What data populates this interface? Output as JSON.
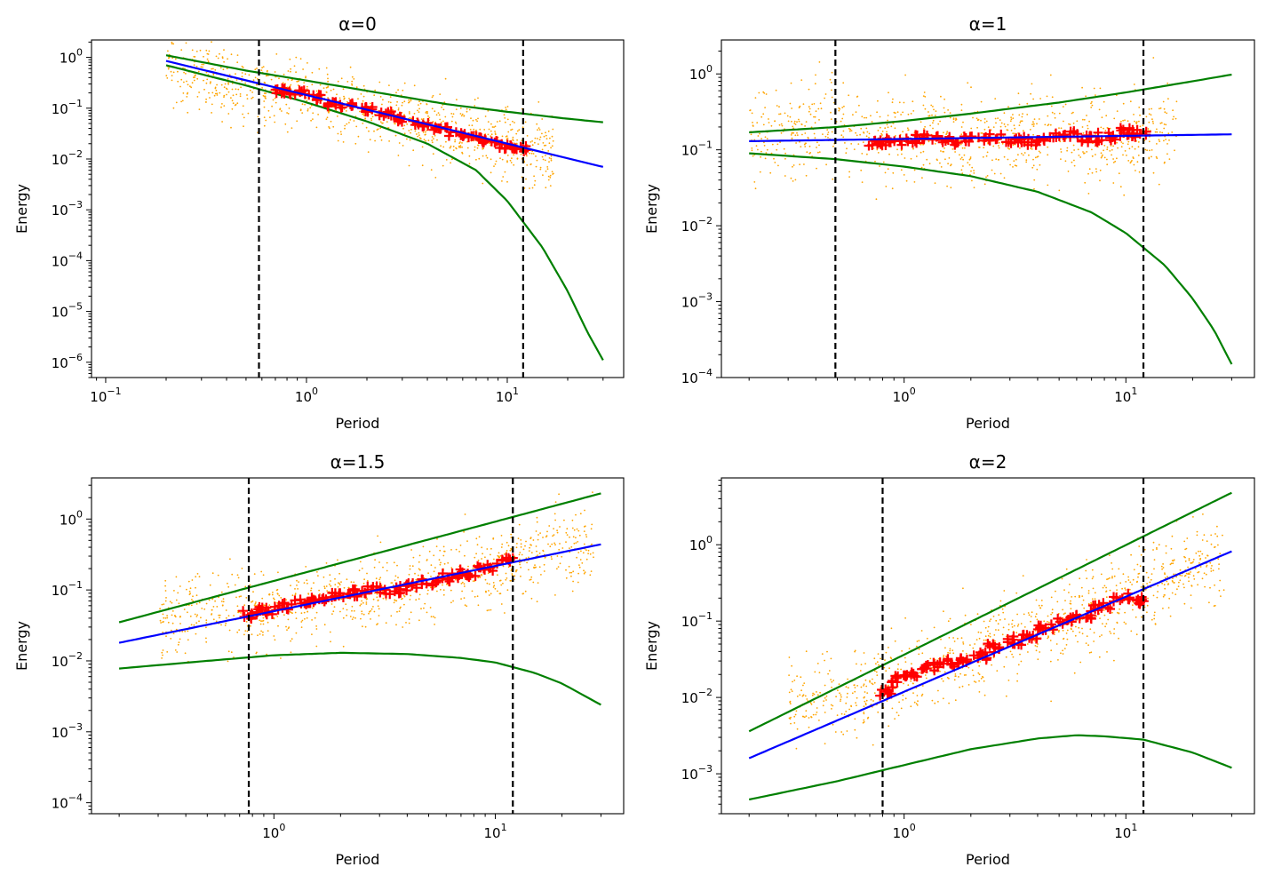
{
  "colors": {
    "scatter": "#FFA500",
    "binned": "#FF0000",
    "fit": "#0000FF",
    "envelope": "#008000",
    "cutoff": "#000000"
  },
  "chart_data": [
    {
      "type": "scatter",
      "title": "α=0",
      "xlabel": "Period",
      "ylabel": "Energy",
      "xscale": "log",
      "yscale": "log",
      "xlim": [
        0.085,
        38
      ],
      "ylim": [
        5e-07,
        2.2
      ],
      "xticks": [
        {
          "v": 0.1,
          "label": "10",
          "exp": "−1"
        },
        {
          "v": 1,
          "label": "10",
          "exp": "0"
        },
        {
          "v": 10,
          "label": "10",
          "exp": "1"
        }
      ],
      "yticks": [
        {
          "v": 1e-06,
          "label": "10",
          "exp": "−6"
        },
        {
          "v": 1e-05,
          "label": "10",
          "exp": "−5"
        },
        {
          "v": 0.0001,
          "label": "10",
          "exp": "−4"
        },
        {
          "v": 0.001,
          "label": "10",
          "exp": "−3"
        },
        {
          "v": 0.01,
          "label": "10",
          "exp": "−2"
        },
        {
          "v": 0.1,
          "label": "10",
          "exp": "−1"
        },
        {
          "v": 1,
          "label": "10",
          "exp": "0"
        }
      ],
      "vlines": [
        0.58,
        12.0
      ],
      "fit_line": {
        "x": [
          0.2,
          30
        ],
        "y": [
          0.85,
          0.007
        ]
      },
      "envelope_upper": {
        "x": [
          0.2,
          0.5,
          1,
          2,
          5,
          10,
          20,
          30
        ],
        "y": [
          1.1,
          0.55,
          0.35,
          0.22,
          0.12,
          0.085,
          0.062,
          0.053
        ]
      },
      "envelope_lower": {
        "x": [
          0.2,
          0.5,
          1,
          2,
          4,
          7,
          10,
          15,
          20,
          25,
          30
        ],
        "y": [
          0.7,
          0.28,
          0.13,
          0.055,
          0.02,
          0.006,
          0.0015,
          0.00018,
          2.5e-05,
          4e-06,
          1.1e-06
        ]
      },
      "binned": {
        "x": [
          0.75,
          0.9,
          1.1,
          1.35,
          1.6,
          2.0,
          2.5,
          3.1,
          3.8,
          4.6,
          5.6,
          6.8,
          8.2,
          10,
          11.5
        ],
        "y": [
          0.22,
          0.21,
          0.16,
          0.12,
          0.11,
          0.095,
          0.08,
          0.06,
          0.05,
          0.042,
          0.03,
          0.028,
          0.022,
          0.018,
          0.016
        ]
      },
      "scatter_cloud": {
        "x_range": [
          0.2,
          17
        ],
        "center": {
          "x": [
            0.2,
            0.6,
            1,
            3,
            10,
            17
          ],
          "y": [
            0.65,
            0.22,
            0.16,
            0.065,
            0.02,
            0.012
          ]
        },
        "spread_dex": 0.35,
        "n": 900
      }
    },
    {
      "type": "scatter",
      "title": "α=1",
      "xlabel": "Period",
      "ylabel": "Energy",
      "xscale": "log",
      "yscale": "log",
      "xlim": [
        0.15,
        38
      ],
      "ylim": [
        0.0001,
        2.8
      ],
      "xticks": [
        {
          "v": 1,
          "label": "10",
          "exp": "0"
        },
        {
          "v": 10,
          "label": "10",
          "exp": "1"
        }
      ],
      "yticks": [
        {
          "v": 0.0001,
          "label": "10",
          "exp": "−4"
        },
        {
          "v": 0.001,
          "label": "10",
          "exp": "−3"
        },
        {
          "v": 0.01,
          "label": "10",
          "exp": "−2"
        },
        {
          "v": 0.1,
          "label": "10",
          "exp": "−1"
        },
        {
          "v": 1,
          "label": "10",
          "exp": "0"
        }
      ],
      "vlines": [
        0.49,
        12.0
      ],
      "fit_line": {
        "x": [
          0.2,
          30
        ],
        "y": [
          0.13,
          0.16
        ]
      },
      "envelope_upper": {
        "x": [
          0.2,
          0.5,
          1,
          2,
          5,
          10,
          20,
          30
        ],
        "y": [
          0.17,
          0.2,
          0.24,
          0.3,
          0.42,
          0.57,
          0.8,
          0.98
        ]
      },
      "envelope_lower": {
        "x": [
          0.2,
          0.5,
          1,
          2,
          4,
          7,
          10,
          15,
          20,
          25,
          30
        ],
        "y": [
          0.09,
          0.075,
          0.06,
          0.045,
          0.028,
          0.015,
          0.008,
          0.003,
          0.0011,
          0.00042,
          0.00015
        ]
      },
      "binned": {
        "x": [
          0.75,
          0.9,
          1.1,
          1.3,
          1.6,
          2.0,
          2.5,
          3.1,
          3.8,
          4.6,
          5.6,
          6.8,
          8.2,
          10,
          11.5
        ],
        "y": [
          0.12,
          0.13,
          0.14,
          0.15,
          0.13,
          0.14,
          0.15,
          0.14,
          0.13,
          0.15,
          0.16,
          0.14,
          0.15,
          0.17,
          0.16
        ]
      },
      "scatter_cloud": {
        "x_range": [
          0.2,
          17
        ],
        "center": {
          "x": [
            0.2,
            0.45,
            1,
            3,
            10,
            17
          ],
          "y": [
            0.14,
            0.22,
            0.14,
            0.14,
            0.15,
            0.2
          ]
        },
        "spread_dex": 0.3,
        "n": 900
      }
    },
    {
      "type": "scatter",
      "title": "α=1.5",
      "xlabel": "Period",
      "ylabel": "Energy",
      "xscale": "log",
      "yscale": "log",
      "xlim": [
        0.15,
        38
      ],
      "ylim": [
        7e-05,
        3.8
      ],
      "xticks": [
        {
          "v": 1,
          "label": "10",
          "exp": "0"
        },
        {
          "v": 10,
          "label": "10",
          "exp": "1"
        }
      ],
      "yticks": [
        {
          "v": 0.0001,
          "label": "10",
          "exp": "−4"
        },
        {
          "v": 0.001,
          "label": "10",
          "exp": "−3"
        },
        {
          "v": 0.01,
          "label": "10",
          "exp": "−2"
        },
        {
          "v": 0.1,
          "label": "10",
          "exp": "−1"
        },
        {
          "v": 1,
          "label": "10",
          "exp": "0"
        }
      ],
      "vlines": [
        0.77,
        12.0
      ],
      "fit_line": {
        "x": [
          0.2,
          30
        ],
        "y": [
          0.018,
          0.44
        ]
      },
      "envelope_upper": {
        "x": [
          0.2,
          30
        ],
        "y": [
          0.035,
          2.3
        ]
      },
      "envelope_lower": {
        "x": [
          0.2,
          0.5,
          1,
          2,
          4,
          7,
          10,
          15,
          20,
          30
        ],
        "y": [
          0.0078,
          0.01,
          0.012,
          0.013,
          0.0125,
          0.011,
          0.0095,
          0.0068,
          0.0048,
          0.0024
        ]
      },
      "binned": {
        "x": [
          0.78,
          0.9,
          1.1,
          1.35,
          1.6,
          1.9,
          2.3,
          2.8,
          3.4,
          4.2,
          5.1,
          6.2,
          7.5,
          9,
          11
        ],
        "y": [
          0.045,
          0.05,
          0.06,
          0.07,
          0.075,
          0.08,
          0.09,
          0.1,
          0.1,
          0.11,
          0.13,
          0.15,
          0.17,
          0.2,
          0.25
        ]
      },
      "scatter_cloud": {
        "x_range": [
          0.3,
          28
        ],
        "center": {
          "x": [
            0.3,
            0.6,
            1,
            3,
            10,
            20
          ],
          "y": [
            0.045,
            0.05,
            0.055,
            0.095,
            0.2,
            0.4
          ]
        },
        "spread_dex": 0.28,
        "n": 900
      }
    },
    {
      "type": "scatter",
      "title": "α=2",
      "xlabel": "Period",
      "ylabel": "Energy",
      "xscale": "log",
      "yscale": "log",
      "xlim": [
        0.15,
        38
      ],
      "ylim": [
        0.0003,
        7.5
      ],
      "xticks": [
        {
          "v": 1,
          "label": "10",
          "exp": "0"
        },
        {
          "v": 10,
          "label": "10",
          "exp": "1"
        }
      ],
      "yticks": [
        {
          "v": 0.001,
          "label": "10",
          "exp": "−3"
        },
        {
          "v": 0.01,
          "label": "10",
          "exp": "−2"
        },
        {
          "v": 0.1,
          "label": "10",
          "exp": "−1"
        },
        {
          "v": 1,
          "label": "10",
          "exp": "0"
        }
      ],
      "vlines": [
        0.8,
        12.0
      ],
      "fit_line": {
        "x": [
          0.2,
          30
        ],
        "y": [
          0.0016,
          0.82
        ]
      },
      "envelope_upper": {
        "x": [
          0.2,
          30
        ],
        "y": [
          0.0036,
          4.8
        ]
      },
      "envelope_lower": {
        "x": [
          0.2,
          0.5,
          1,
          2,
          4,
          6,
          8,
          12,
          20,
          30
        ],
        "y": [
          0.00046,
          0.0008,
          0.0013,
          0.0021,
          0.0029,
          0.0032,
          0.0031,
          0.0028,
          0.0019,
          0.0012
        ]
      },
      "binned": {
        "x": [
          0.82,
          0.95,
          1.1,
          1.3,
          1.55,
          1.85,
          2.2,
          2.6,
          3.1,
          3.7,
          4.4,
          5.3,
          6.4,
          7.8,
          9.5,
          11.5
        ],
        "y": [
          0.012,
          0.018,
          0.02,
          0.025,
          0.028,
          0.03,
          0.035,
          0.045,
          0.055,
          0.065,
          0.08,
          0.1,
          0.12,
          0.16,
          0.2,
          0.18
        ]
      },
      "scatter_cloud": {
        "x_range": [
          0.3,
          28
        ],
        "center": {
          "x": [
            0.3,
            0.6,
            1,
            3,
            10,
            20
          ],
          "y": [
            0.01,
            0.01,
            0.02,
            0.06,
            0.2,
            0.6
          ]
        },
        "spread_dex": 0.28,
        "n": 900
      }
    }
  ]
}
